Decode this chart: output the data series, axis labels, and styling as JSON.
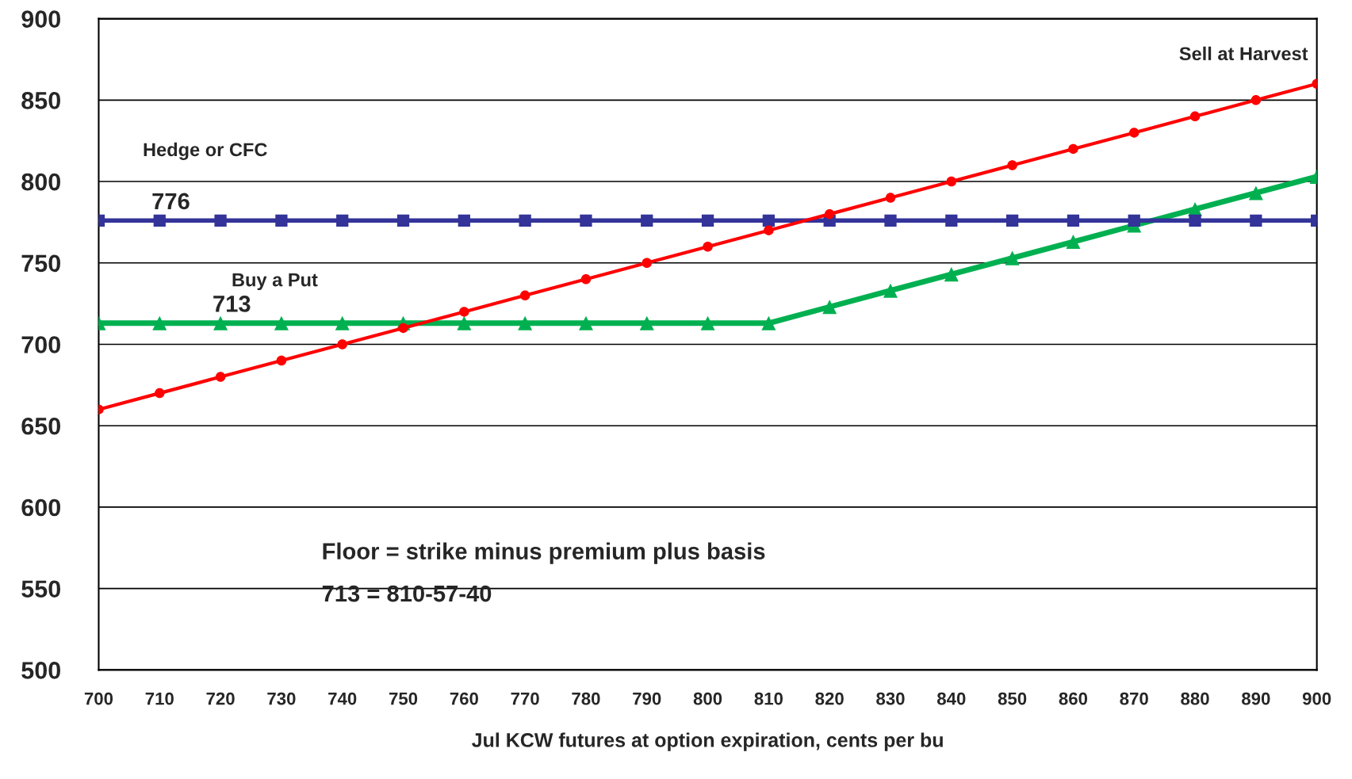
{
  "chart_data": {
    "type": "line",
    "xlabel": "Jul KCW futures at option expiration, cents per bu",
    "x": [
      700,
      710,
      720,
      730,
      740,
      750,
      760,
      770,
      780,
      790,
      800,
      810,
      820,
      830,
      840,
      850,
      860,
      870,
      880,
      890,
      900
    ],
    "series": [
      {
        "name": "Sell at Harvest",
        "color": "#ff0000",
        "marker": "circle",
        "values": [
          660,
          670,
          680,
          690,
          700,
          710,
          720,
          730,
          740,
          750,
          760,
          770,
          780,
          790,
          800,
          810,
          820,
          830,
          840,
          850,
          860
        ]
      },
      {
        "name": "Hedge or CFC",
        "color": "#333399",
        "marker": "square",
        "values": [
          776,
          776,
          776,
          776,
          776,
          776,
          776,
          776,
          776,
          776,
          776,
          776,
          776,
          776,
          776,
          776,
          776,
          776,
          776,
          776,
          776
        ]
      },
      {
        "name": "Buy a Put",
        "color": "#00b050",
        "marker": "triangle",
        "values": [
          713,
          713,
          713,
          713,
          713,
          713,
          713,
          713,
          713,
          713,
          713,
          713,
          723,
          733,
          743,
          753,
          763,
          773,
          783,
          793,
          803
        ]
      }
    ],
    "annotations": [
      {
        "text": "776",
        "x": 700,
        "y": 776
      },
      {
        "text": "713",
        "x": 710,
        "y": 713
      },
      "Floor = strike minus premium plus basis",
      "713 = 810-57-40"
    ],
    "xlim": [
      700,
      900
    ],
    "xticks": [
      700,
      710,
      720,
      730,
      740,
      750,
      760,
      770,
      780,
      790,
      800,
      810,
      820,
      830,
      840,
      850,
      860,
      870,
      880,
      890,
      900
    ],
    "ylim": [
      500,
      900
    ],
    "yticks": [
      500,
      550,
      600,
      650,
      700,
      750,
      800,
      850,
      900
    ],
    "grid": "y",
    "legend": false,
    "line_style": "solid"
  }
}
